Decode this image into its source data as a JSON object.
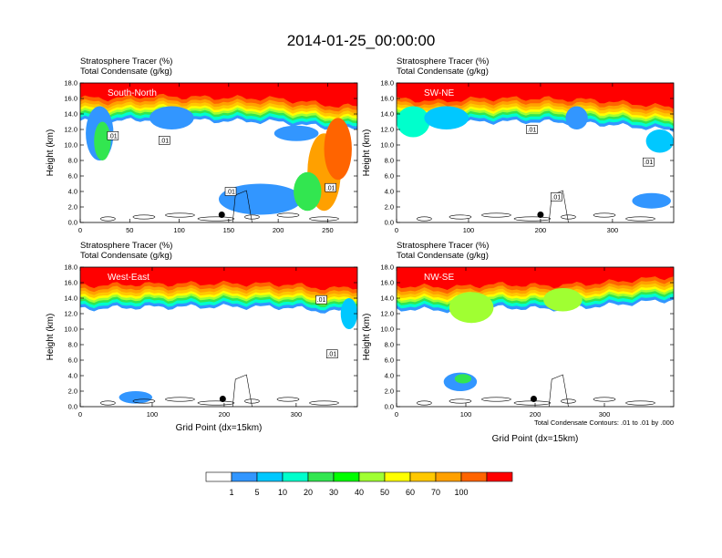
{
  "title": "2014-01-25_00:00:00",
  "chart_data": [
    {
      "type": "heatmap",
      "panel": "South-North",
      "subtitle_1": "Stratosphere Tracer   (%)",
      "subtitle_2": "Total Condensate   (g/kg)",
      "ylabel": "Height (km)",
      "xlabel": "",
      "xlim": [
        0,
        280
      ],
      "ylim": [
        0,
        18
      ],
      "xticks": [
        "0",
        "50",
        "100",
        "150",
        "200",
        "250"
      ],
      "xtick_values": [
        0,
        50,
        100,
        150,
        200,
        250
      ],
      "yticks": [
        "0.0",
        "2.0",
        "4.0",
        "6.0",
        "8.0",
        "10.0",
        "12.0",
        "14.0",
        "16.0",
        "18.0"
      ],
      "contour_labels": [
        {
          "text": ".01",
          "x": 33,
          "y": 11.2
        },
        {
          "text": ".01",
          "x": 85,
          "y": 10.6
        },
        {
          "text": ".01",
          "x": 152,
          "y": 4.0
        },
        {
          "text": ".01",
          "x": 253,
          "y": 4.5
        }
      ],
      "marker": {
        "x": 143,
        "y": 1.0
      }
    },
    {
      "type": "heatmap",
      "panel": "SW-NE",
      "subtitle_1": "Stratosphere Tracer   (%)",
      "subtitle_2": "Total Condensate   (g/kg)",
      "ylabel": "Height (km)",
      "xlabel": "",
      "xlim": [
        0,
        385
      ],
      "ylim": [
        0,
        18
      ],
      "xticks": [
        "0",
        "100",
        "200",
        "300"
      ],
      "xtick_values": [
        0,
        100,
        200,
        300
      ],
      "yticks": [
        "0.0",
        "2.0",
        "4.0",
        "6.0",
        "8.0",
        "10.0",
        "12.0",
        "14.0",
        "16.0",
        "18.0"
      ],
      "contour_labels": [
        {
          "text": ".01",
          "x": 188,
          "y": 12.0
        },
        {
          "text": ".01",
          "x": 350,
          "y": 7.8
        },
        {
          "text": ".01",
          "x": 222,
          "y": 3.3
        }
      ],
      "marker": {
        "x": 200,
        "y": 1.0
      }
    },
    {
      "type": "heatmap",
      "panel": "West-East",
      "subtitle_1": "Stratosphere Tracer   (%)",
      "subtitle_2": "Total Condensate   (g/kg)",
      "ylabel": "Height (km)",
      "xlabel": "Grid Point (dx=15km)",
      "xlim": [
        0,
        385
      ],
      "ylim": [
        0,
        18
      ],
      "xticks": [
        "0",
        "100",
        "200",
        "300"
      ],
      "xtick_values": [
        0,
        100,
        200,
        300
      ],
      "yticks": [
        "0.0",
        "2.0",
        "4.0",
        "6.0",
        "8.0",
        "10.0",
        "12.0",
        "14.0",
        "16.0",
        "18.0"
      ],
      "contour_labels": [
        {
          "text": ".01",
          "x": 335,
          "y": 13.8
        },
        {
          "text": ".01",
          "x": 350,
          "y": 6.8
        }
      ],
      "marker": {
        "x": 198,
        "y": 1.0
      }
    },
    {
      "type": "heatmap",
      "panel": "NW-SE",
      "subtitle_1": "Stratosphere Tracer   (%)",
      "subtitle_2": "Total Condensate   (g/kg)",
      "ylabel": "Height (km)",
      "xlabel": "Grid Point (dx=15km)",
      "xlim": [
        0,
        400
      ],
      "ylim": [
        0,
        18
      ],
      "xticks": [
        "0",
        "100",
        "200",
        "300"
      ],
      "xtick_values": [
        0,
        100,
        200,
        300
      ],
      "yticks": [
        "0.0",
        "2.0",
        "4.0",
        "6.0",
        "8.0",
        "10.0",
        "12.0",
        "14.0",
        "16.0",
        "18.0"
      ],
      "note": "Total Condensate Contours: .01 to .01 by .000",
      "contour_labels": [],
      "marker": {
        "x": 198,
        "y": 1.0
      }
    }
  ],
  "colorbar": {
    "labels": [
      "1",
      "5",
      "10",
      "20",
      "30",
      "40",
      "50",
      "60",
      "70",
      "100"
    ],
    "colors": [
      "#ffffff",
      "#3296ff",
      "#00c8ff",
      "#00ffcc",
      "#32e650",
      "#00ff00",
      "#a0ff32",
      "#ffff00",
      "#ffc800",
      "#ffa000",
      "#ff6400",
      "#ff0000"
    ]
  }
}
